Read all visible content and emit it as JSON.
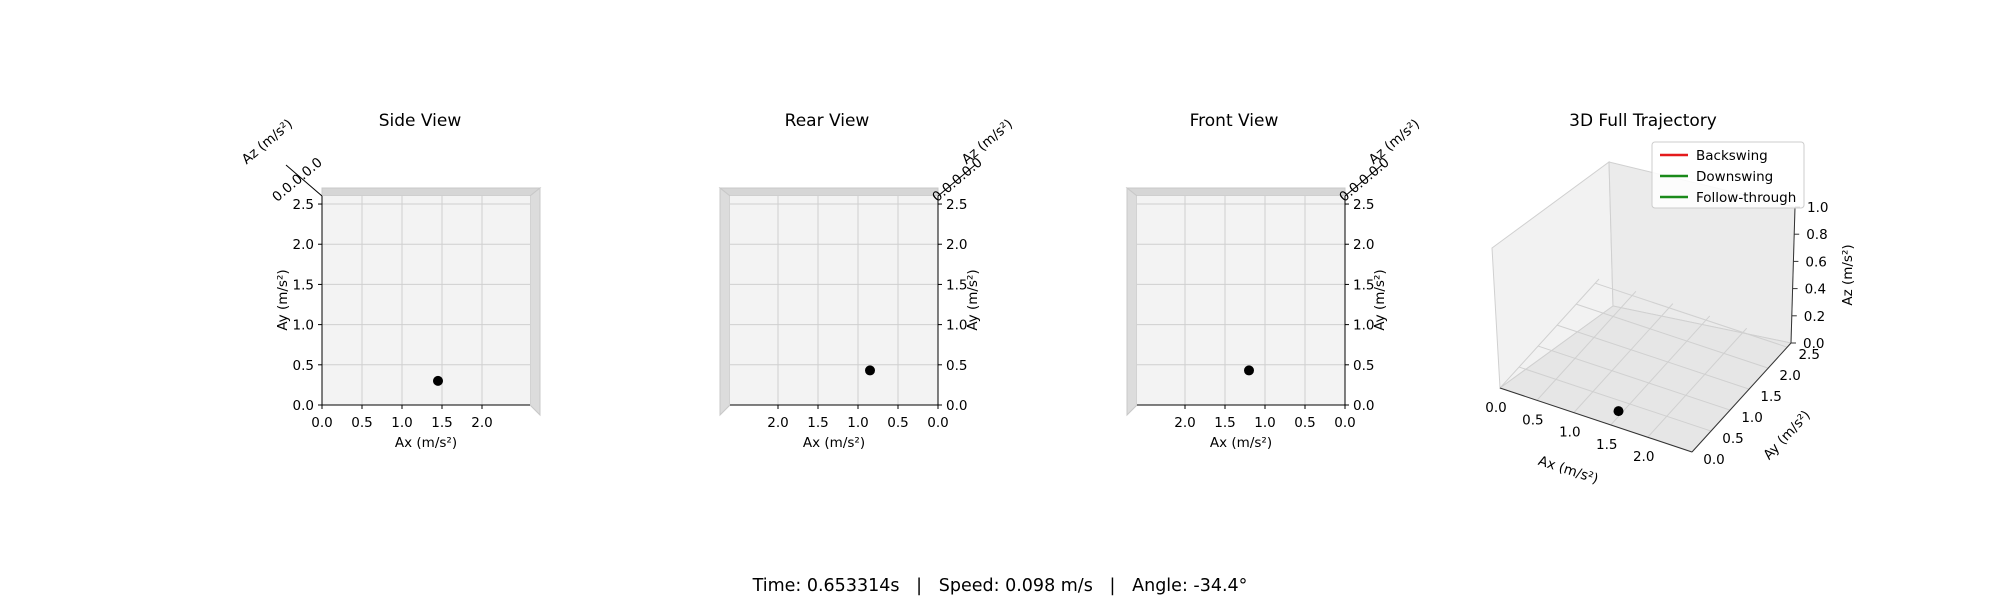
{
  "status": {
    "time_label": "Time: 0.653314s",
    "speed_label": "Speed: 0.098 m/s",
    "angle_label": "Angle: -34.4°",
    "separator": "|"
  },
  "chart_data": [
    {
      "type": "scatter",
      "title": "Side View",
      "xlabel": "Ax (m/s²)",
      "ylabel": "Ay (m/s²)",
      "zlabel": "Az (m/s²)",
      "xlim": [
        0.0,
        2.6
      ],
      "ylim": [
        0.0,
        2.6
      ],
      "xticks": [
        "0.0",
        "0.5",
        "1.0",
        "1.5",
        "2.0"
      ],
      "yticks": [
        "0.0",
        "0.5",
        "1.0",
        "1.5",
        "2.0",
        "2.5"
      ],
      "points": [
        {
          "x": 1.45,
          "y": 0.3,
          "color": "#000000"
        }
      ],
      "grid": true
    },
    {
      "type": "scatter",
      "title": "Rear View",
      "xlabel": "Ax (m/s²)",
      "ylabel": "Ay (m/s²)",
      "zlabel": "Az (m/s²)",
      "xlim": [
        2.6,
        0.0
      ],
      "ylim": [
        0.0,
        2.6
      ],
      "xticks": [
        "2.0",
        "1.5",
        "1.0",
        "0.5",
        "0.0"
      ],
      "yticks": [
        "0.0",
        "0.5",
        "1.0",
        "1.5",
        "2.0",
        "2.5"
      ],
      "points": [
        {
          "x": 0.85,
          "y": 0.43,
          "color": "#000000"
        }
      ],
      "grid": true
    },
    {
      "type": "scatter",
      "title": "Front View",
      "xlabel": "Ax (m/s²)",
      "ylabel": "Ay (m/s²)",
      "zlabel": "Az (m/s²)",
      "xlim": [
        2.6,
        0.0
      ],
      "ylim": [
        0.0,
        2.6
      ],
      "xticks": [
        "2.0",
        "1.5",
        "1.0",
        "0.5",
        "0.0"
      ],
      "yticks": [
        "0.0",
        "0.5",
        "1.0",
        "1.5",
        "2.0",
        "2.5"
      ],
      "points": [
        {
          "x": 1.2,
          "y": 0.43,
          "color": "#000000"
        }
      ],
      "grid": true
    },
    {
      "type": "scatter",
      "title": "3D Full Trajectory",
      "xlabel": "Ax (m/s²)",
      "ylabel": "Ay (m/s²)",
      "zlabel": "Az (m/s²)",
      "xticks": [
        "0.0",
        "0.5",
        "1.0",
        "1.5",
        "2.0"
      ],
      "yticks": [
        "0.0",
        "0.5",
        "1.0",
        "1.5",
        "2.0",
        "2.5"
      ],
      "zticks": [
        "0.0",
        "0.2",
        "0.4",
        "0.6",
        "0.8",
        "1.0"
      ],
      "legend": {
        "placement": "top-right",
        "entries": [
          {
            "name": "Backswing",
            "color": "#e41a1c"
          },
          {
            "name": "Downswing",
            "color": "#1a8a1a"
          },
          {
            "name": "Follow-through",
            "color": "#1a8a1a"
          }
        ]
      },
      "points": [
        {
          "x": 1.45,
          "y": 0.3,
          "z": 0.0,
          "color": "#000000"
        }
      ],
      "grid": true
    }
  ]
}
